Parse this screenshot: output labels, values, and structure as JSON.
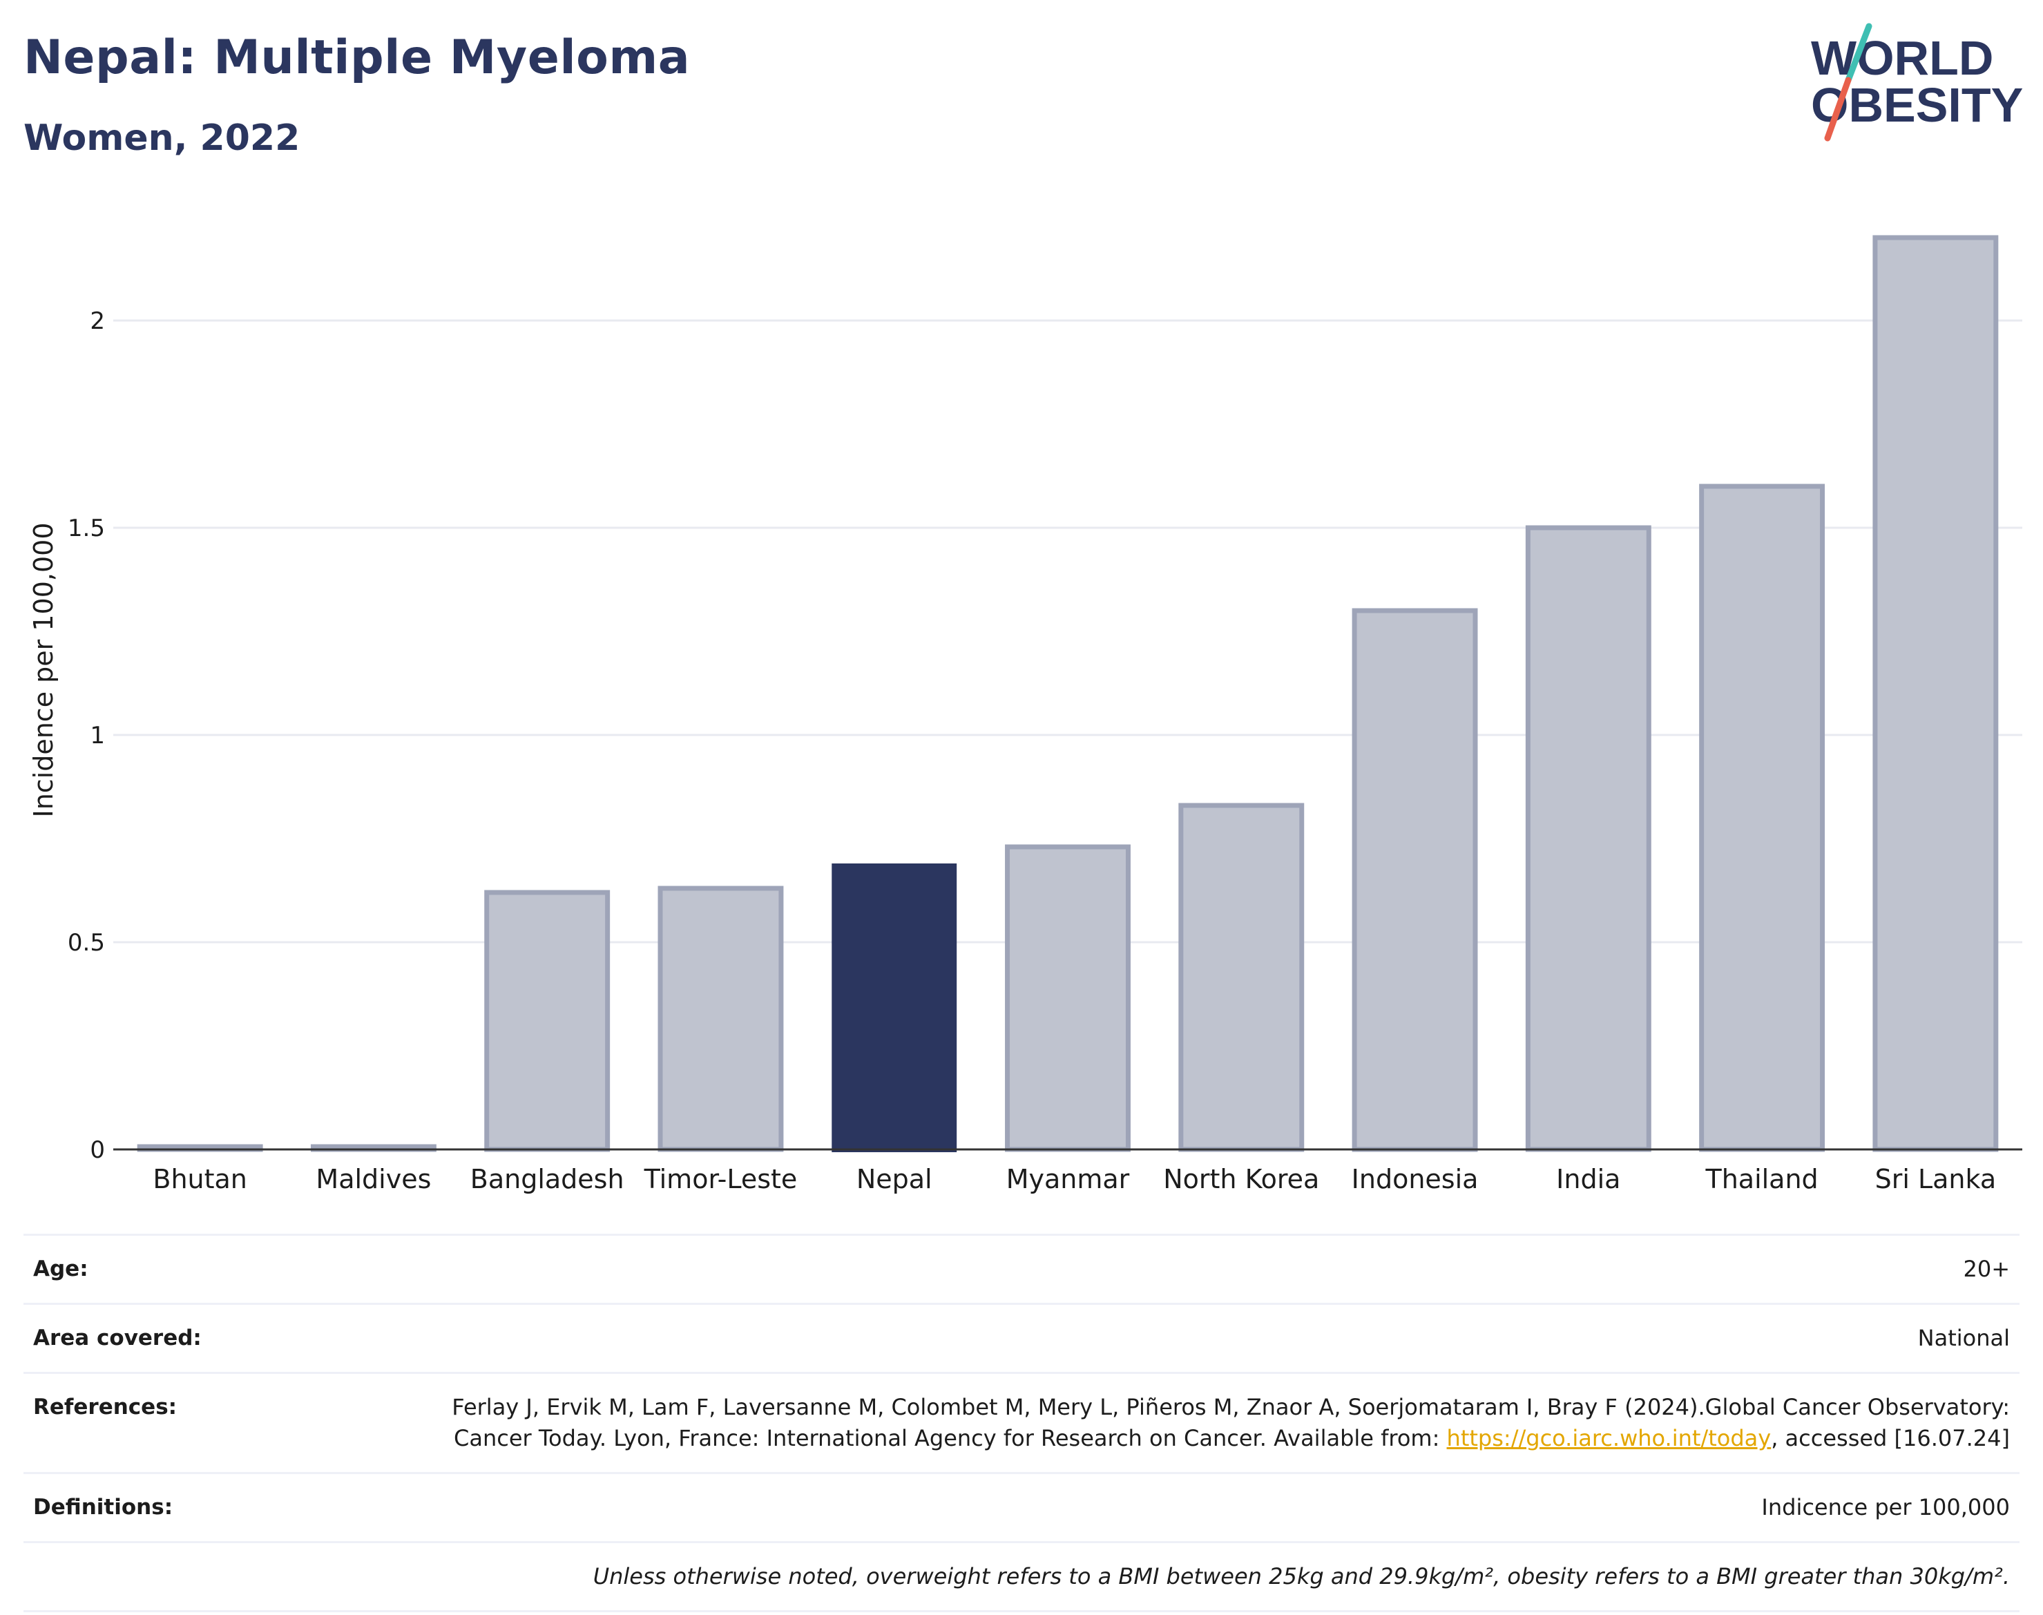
{
  "header": {
    "title": "Nepal: Multiple Myeloma",
    "subtitle": "Women, 2022"
  },
  "logo": {
    "line1": "WORLD",
    "line2": "OBESITY",
    "colors": {
      "text": "#2b365f",
      "slash_top": "#3fbfb3",
      "slash_bottom": "#e8604c"
    }
  },
  "colors": {
    "highlight": "#2b365f",
    "bar": "#bfc3cf",
    "bar_border": "#9ea4b8",
    "grid": "#e8eaf0",
    "axis": "#333333"
  },
  "chart_data": {
    "type": "bar",
    "title": "",
    "xlabel": "",
    "ylabel": "Incidence per 100,000",
    "categories": [
      "Bhutan",
      "Maldives",
      "Bangladesh",
      "Timor-Leste",
      "Nepal",
      "Myanmar",
      "North Korea",
      "Indonesia",
      "India",
      "Thailand",
      "Sri Lanka"
    ],
    "values": [
      0,
      0,
      0.62,
      0.63,
      0.69,
      0.73,
      0.83,
      1.3,
      1.5,
      1.6,
      2.2
    ],
    "highlight": "Nepal",
    "ylim": [
      0,
      2.3
    ],
    "yticks": [
      0,
      0.5,
      1,
      1.5,
      2
    ],
    "ytick_labels": [
      "0",
      "0.5",
      "1",
      "1.5",
      "2"
    ],
    "grid": true,
    "legend": "none"
  },
  "meta": {
    "age_label": "Age:",
    "age_value": "20+",
    "area_label": "Area covered:",
    "area_value": "National",
    "references_label": "References:",
    "references_text_1": "Ferlay J, Ervik M, Lam F, Laversanne M, Colombet M, Mery L, Piñeros M, Znaor A, Soerjomataram I, Bray F (2024).Global Cancer Observatory: Cancer Today. Lyon, France: International Agency for Research on Cancer. Available from: ",
    "references_link": "https://gco.iarc.who.int/today",
    "references_text_2": ", accessed [16.07.24]",
    "definitions_label": "Definitions:",
    "definitions_value": "Indicence per 100,000",
    "note": "Unless otherwise noted, overweight refers to a BMI between 25kg and 29.9kg/m², obesity refers to a BMI greater than 30kg/m²."
  }
}
